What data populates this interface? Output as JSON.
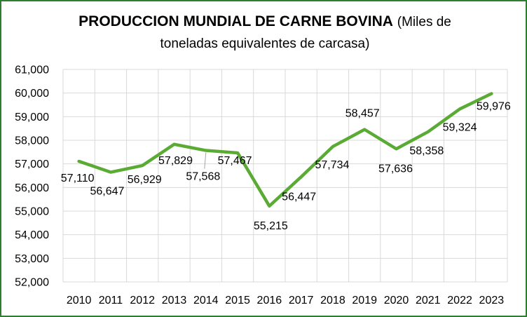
{
  "chart_data": {
    "type": "line",
    "title_bold": "PRODUCCION MUNDIAL DE CARNE BOVINA",
    "title_rest": "(Miles de",
    "subtitle": "toneladas equivalentes de carcasa)",
    "xlabel": "",
    "ylabel": "",
    "categories": [
      "2010",
      "2011",
      "2012",
      "2013",
      "2014",
      "2015",
      "2016",
      "2017",
      "2018",
      "2019",
      "2020",
      "2021",
      "2022",
      "2023"
    ],
    "series": [
      {
        "values": [
          57110,
          56647,
          56929,
          57829,
          57568,
          57467,
          55215,
          56447,
          57734,
          58457,
          57636,
          58358,
          59324,
          59976
        ],
        "labels": [
          "57,110",
          "56,647",
          "56,929",
          "57,829",
          "57,568",
          "57,467",
          "55,215",
          "56,447",
          "57,734",
          "58,457",
          "57,636",
          "58,358",
          "59,324",
          "59,976"
        ]
      }
    ],
    "ylim": [
      52000,
      61000
    ],
    "yticks": [
      52000,
      53000,
      54000,
      55000,
      56000,
      57000,
      58000,
      59000,
      60000,
      61000
    ],
    "ytick_labels": [
      "52,000",
      "53,000",
      "54,000",
      "55,000",
      "56,000",
      "57,000",
      "58,000",
      "59,000",
      "60,000",
      "61,000"
    ],
    "grid": true,
    "line_color": "#5aab34",
    "grid_color": "#d9d9d9",
    "frame_color": "#2e7d32"
  }
}
